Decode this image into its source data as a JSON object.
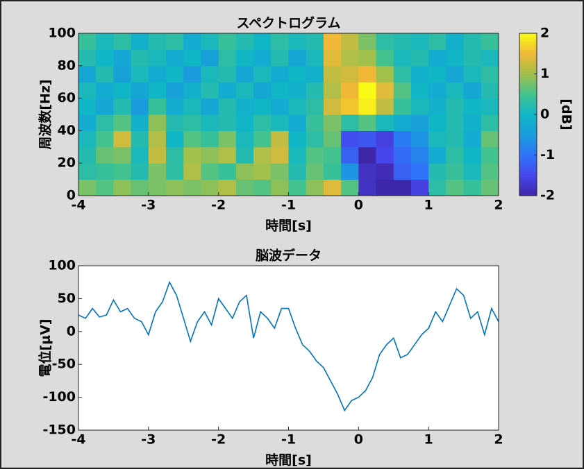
{
  "chart_data": [
    {
      "type": "heatmap",
      "title": "スペクトログラム",
      "x_label": "時間[s]",
      "y_label": "周波数[Hz]",
      "colorbar_label": "[dB]",
      "xlim": [
        -4,
        2
      ],
      "xticks": [
        -4,
        -3,
        -2,
        -1,
        0,
        1,
        2
      ],
      "ylim": [
        0,
        100
      ],
      "yticks": [
        0,
        20,
        40,
        60,
        80,
        100
      ],
      "clim": [
        -2,
        2
      ],
      "cticks": [
        -2,
        -1,
        0,
        1,
        2
      ],
      "colormap": [
        "#3e26a8",
        "#4746eb",
        "#2f74f9",
        "#1a9cde",
        "#10b5c6",
        "#41c28f",
        "#a1c04c",
        "#f0b836",
        "#f9fb15"
      ],
      "x": [
        -3.875,
        -3.625,
        -3.375,
        -3.125,
        -2.875,
        -2.625,
        -2.375,
        -2.125,
        -1.875,
        -1.625,
        -1.375,
        -1.125,
        -0.875,
        -0.625,
        -0.375,
        -0.125,
        0.125,
        0.375,
        0.625,
        0.875,
        1.125,
        1.375,
        1.625,
        1.875
      ],
      "y": [
        5,
        15,
        25,
        35,
        45,
        55,
        65,
        75,
        85,
        95
      ],
      "z": [
        [
          0.8,
          0.6,
          0.9,
          0.7,
          0.8,
          0.9,
          0.8,
          0.9,
          1.1,
          0.7,
          0.6,
          0.9,
          0.5,
          0.9,
          1.4,
          0.6,
          -1.8,
          -2,
          -2,
          -1.6,
          0.3,
          0.6,
          0.4,
          0.7
        ],
        [
          0.3,
          0.4,
          0.5,
          0.2,
          0.8,
          0.3,
          1.1,
          0.6,
          0.4,
          0.9,
          1.0,
          0.8,
          0.2,
          0.7,
          0.4,
          -0.6,
          -1.8,
          -1.9,
          -1.2,
          -1.0,
          0.2,
          0.4,
          0.1,
          0.6
        ],
        [
          0.2,
          0.7,
          0.8,
          0.1,
          1.2,
          0.3,
          1.0,
          0.9,
          1.1,
          0.2,
          1.1,
          1.3,
          0.1,
          0.6,
          0.5,
          -1.2,
          -2,
          -1.5,
          -1.1,
          -0.8,
          -0.2,
          0.3,
          0.0,
          0.5
        ],
        [
          0.1,
          0.5,
          1.3,
          0.2,
          1.1,
          0.0,
          0.6,
          0.4,
          0.8,
          0.1,
          0.5,
          1.2,
          0.0,
          0.3,
          0.7,
          -1.4,
          -1.3,
          -1.6,
          -0.9,
          -0.6,
          0.1,
          0.2,
          -0.2,
          0.7
        ],
        [
          -0.2,
          0.3,
          0.6,
          -0.1,
          0.9,
          0.2,
          0.3,
          0.1,
          0.2,
          0.0,
          0.3,
          0.1,
          -0.2,
          0.4,
          0.8,
          0.3,
          0.6,
          0.1,
          -0.2,
          -0.4,
          0.0,
          0.2,
          -0.1,
          0.3
        ],
        [
          0.0,
          -0.3,
          0.2,
          -0.5,
          0.4,
          -0.2,
          0.1,
          -0.3,
          0.2,
          -0.1,
          0.0,
          -0.2,
          0.1,
          0.3,
          1.3,
          1.6,
          1.9,
          1.2,
          0.4,
          0.1,
          -0.1,
          0.2,
          0.0,
          0.1
        ],
        [
          0.1,
          -0.2,
          0.0,
          -0.3,
          0.0,
          -0.4,
          -0.1,
          0.2,
          -0.2,
          0.1,
          -0.3,
          0.0,
          -0.1,
          0.2,
          1.1,
          1.5,
          2.0,
          1.4,
          0.6,
          0.0,
          -0.2,
          0.1,
          -0.3,
          0.2
        ],
        [
          -0.3,
          0.2,
          -0.4,
          0.1,
          -0.2,
          0.0,
          -0.5,
          0.1,
          0.2,
          -0.3,
          0.1,
          -0.2,
          0.0,
          -0.1,
          1.2,
          1.3,
          1.5,
          1.0,
          0.3,
          -0.1,
          0.0,
          -0.3,
          0.1,
          0.3
        ],
        [
          0.2,
          0.0,
          -0.3,
          0.2,
          0.1,
          -0.2,
          0.0,
          -0.4,
          0.3,
          0.0,
          -0.2,
          0.2,
          -0.3,
          0.1,
          1.4,
          1.1,
          1.0,
          0.5,
          0.1,
          0.2,
          -0.2,
          0.0,
          0.2,
          0.1
        ],
        [
          0.4,
          0.1,
          0.3,
          -0.1,
          0.2,
          0.3,
          -0.2,
          0.1,
          0.4,
          0.2,
          0.0,
          0.3,
          0.1,
          0.2,
          1.5,
          1.2,
          0.8,
          0.3,
          0.2,
          0.1,
          0.3,
          -0.1,
          0.2,
          0.4
        ]
      ]
    },
    {
      "type": "line",
      "title": "脳波データ",
      "x_label": "時間[s]",
      "y_label": "電位[μV]",
      "color": "#0072bd",
      "xlim": [
        -4,
        2
      ],
      "xticks": [
        -4,
        -3,
        -2,
        -1,
        0,
        1,
        2
      ],
      "ylim": [
        -150,
        100
      ],
      "yticks": [
        -150,
        -100,
        -50,
        0,
        50,
        100
      ],
      "x": [
        -4.0,
        -3.9,
        -3.8,
        -3.7,
        -3.6,
        -3.5,
        -3.4,
        -3.3,
        -3.2,
        -3.1,
        -3.0,
        -2.9,
        -2.8,
        -2.7,
        -2.6,
        -2.5,
        -2.4,
        -2.3,
        -2.2,
        -2.1,
        -2.0,
        -1.9,
        -1.8,
        -1.7,
        -1.6,
        -1.5,
        -1.4,
        -1.3,
        -1.2,
        -1.1,
        -1.0,
        -0.9,
        -0.8,
        -0.7,
        -0.6,
        -0.5,
        -0.4,
        -0.3,
        -0.2,
        -0.1,
        0.0,
        0.1,
        0.2,
        0.3,
        0.4,
        0.5,
        0.6,
        0.7,
        0.8,
        0.9,
        1.0,
        1.1,
        1.2,
        1.3,
        1.4,
        1.5,
        1.6,
        1.7,
        1.8,
        1.9,
        2.0
      ],
      "values": [
        25,
        20,
        35,
        22,
        25,
        48,
        30,
        35,
        20,
        15,
        -5,
        30,
        45,
        75,
        55,
        20,
        -15,
        15,
        30,
        10,
        50,
        35,
        20,
        45,
        55,
        -10,
        30,
        20,
        5,
        35,
        35,
        5,
        -20,
        -30,
        -45,
        -55,
        -75,
        -95,
        -120,
        -105,
        -100,
        -90,
        -70,
        -35,
        -20,
        -10,
        -40,
        -35,
        -20,
        -5,
        5,
        30,
        15,
        40,
        65,
        55,
        20,
        30,
        -5,
        35,
        15
      ]
    }
  ]
}
